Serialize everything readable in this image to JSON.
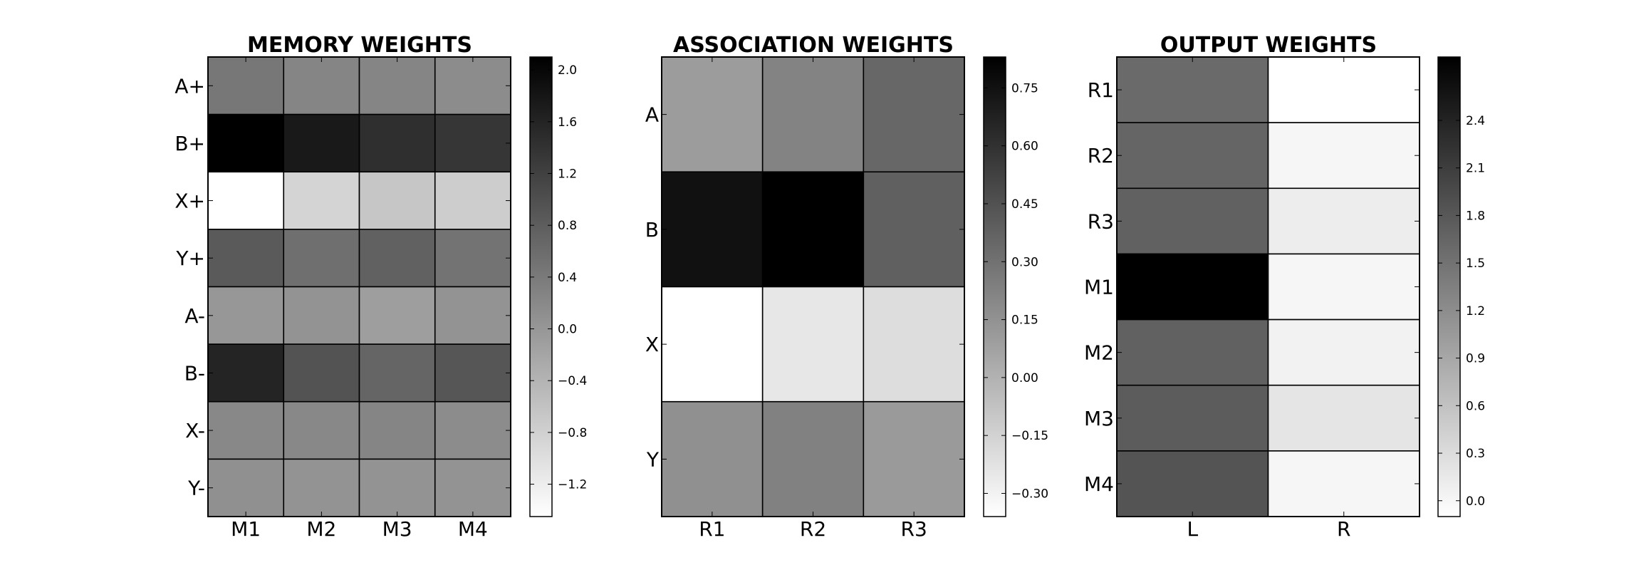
{
  "chart_data": [
    {
      "type": "heatmap",
      "title": "MEMORY WEIGHTS",
      "rows": [
        "A+",
        "B+",
        "X+",
        "Y+",
        "A-",
        "B-",
        "X-",
        "Y-"
      ],
      "cols": [
        "M1",
        "M2",
        "M3",
        "M4"
      ],
      "values": [
        [
          0.45,
          0.25,
          0.25,
          0.15
        ],
        [
          2.1,
          1.75,
          1.45,
          1.35
        ],
        [
          -1.45,
          -0.85,
          -0.65,
          -0.75
        ],
        [
          0.85,
          0.55,
          0.75,
          0.5
        ],
        [
          0.0,
          0.05,
          -0.1,
          0.05
        ],
        [
          1.6,
          0.95,
          0.7,
          0.9
        ],
        [
          0.2,
          0.2,
          0.25,
          0.15
        ],
        [
          0.1,
          0.05,
          0.05,
          0.05
        ]
      ],
      "colorbar": {
        "min": -1.45,
        "max": 2.1,
        "ticks": [
          "2.0",
          "1.6",
          "1.2",
          "0.8",
          "0.4",
          "0.0",
          "−0.4",
          "−0.8",
          "−1.2"
        ],
        "tick_values": [
          2.0,
          1.6,
          1.2,
          0.8,
          0.4,
          0.0,
          -0.4,
          -0.8,
          -1.2
        ]
      },
      "colormap": "gray_r",
      "grid": true
    },
    {
      "type": "heatmap",
      "title": "ASSOCIATION WEIGHTS",
      "rows": [
        "A",
        "B",
        "X",
        "Y"
      ],
      "cols": [
        "R1",
        "R2",
        "R3"
      ],
      "values": [
        [
          0.1,
          0.22,
          0.35
        ],
        [
          0.75,
          0.83,
          0.38
        ],
        [
          -0.36,
          -0.25,
          -0.2
        ],
        [
          0.16,
          0.23,
          0.11
        ]
      ],
      "colorbar": {
        "min": -0.36,
        "max": 0.83,
        "ticks": [
          "0.75",
          "0.60",
          "0.45",
          "0.30",
          "0.15",
          "0.00",
          "−0.15",
          "−0.30"
        ],
        "tick_values": [
          0.75,
          0.6,
          0.45,
          0.3,
          0.15,
          0.0,
          -0.15,
          -0.3
        ]
      },
      "colormap": "gray_r",
      "grid": true
    },
    {
      "type": "heatmap",
      "title": "OUTPUT WEIGHTS",
      "rows": [
        "R1",
        "R2",
        "R3",
        "M1",
        "M2",
        "M3",
        "M4"
      ],
      "cols": [
        "L",
        "R"
      ],
      "values": [
        [
          1.6,
          -0.1
        ],
        [
          1.65,
          0.0
        ],
        [
          1.7,
          0.1
        ],
        [
          2.8,
          0.0
        ],
        [
          1.7,
          0.05
        ],
        [
          1.75,
          0.2
        ],
        [
          1.85,
          0.0
        ]
      ],
      "colorbar": {
        "min": -0.1,
        "max": 2.8,
        "ticks": [
          "2.4",
          "2.1",
          "1.8",
          "1.5",
          "1.2",
          "0.9",
          "0.6",
          "0.3",
          "0.0"
        ],
        "tick_values": [
          2.4,
          2.1,
          1.8,
          1.5,
          1.2,
          0.9,
          0.6,
          0.3,
          0.0
        ]
      },
      "colormap": "gray_r",
      "grid": true
    }
  ]
}
